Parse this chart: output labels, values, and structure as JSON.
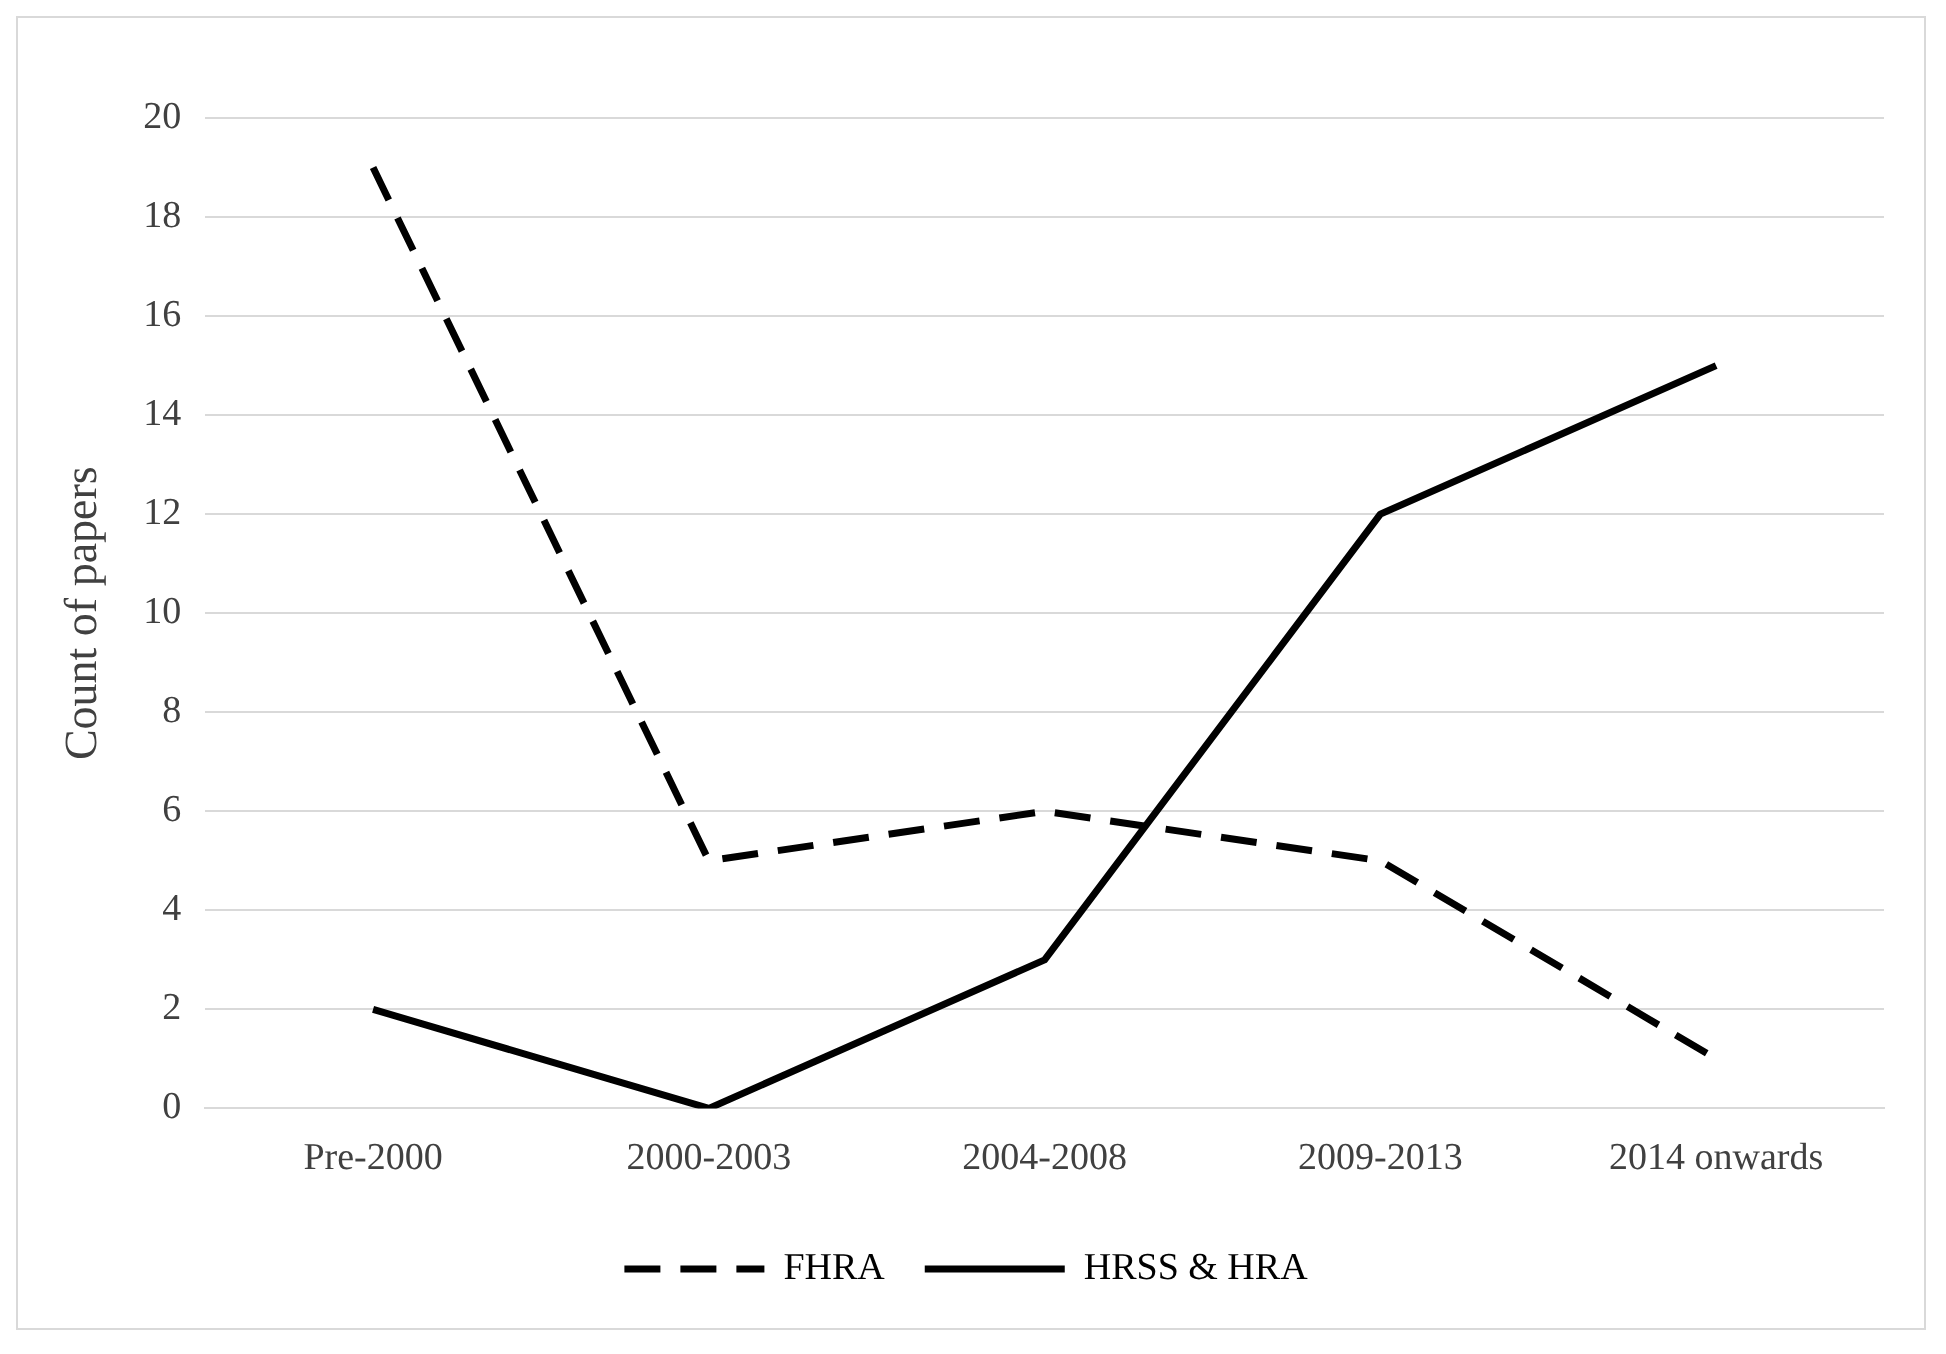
{
  "chart_data": {
    "type": "line",
    "ylabel": "Count of papers",
    "categories": [
      "Pre-2000",
      "2000-2003",
      "2004-2008",
      "2009-2013",
      "2014 onwards"
    ],
    "series": [
      {
        "name": "FHRA",
        "color": "#000000",
        "values": [
          19,
          5,
          6,
          5,
          1
        ],
        "line_style": "dashed"
      },
      {
        "name": "HRSS & HRA",
        "color": "#000000",
        "values": [
          2,
          0,
          3,
          12,
          15
        ],
        "line_style": "solid"
      }
    ],
    "ylim": [
      0,
      20
    ],
    "yticks": [
      0,
      2,
      4,
      6,
      8,
      10,
      12,
      14,
      16,
      18,
      20
    ],
    "grid": "y",
    "legend": "bottom",
    "marker": "none"
  }
}
